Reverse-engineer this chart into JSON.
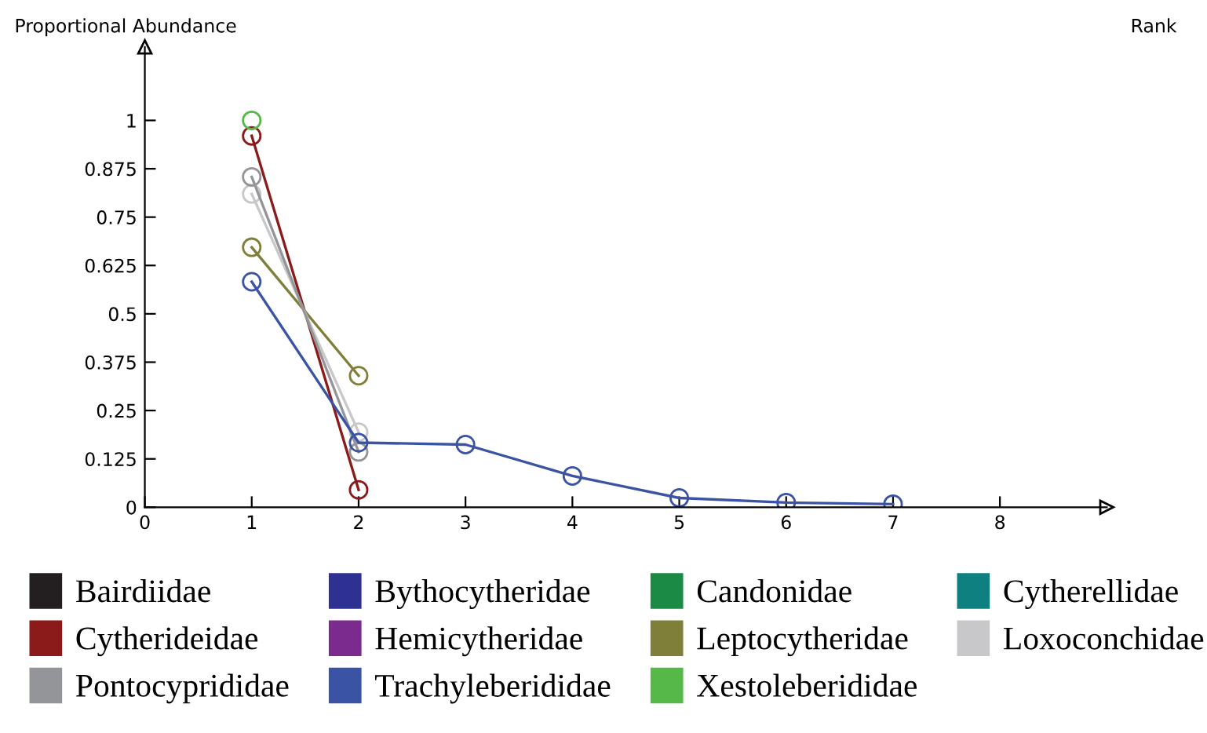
{
  "chart_data": {
    "type": "line",
    "xlabel": "Rank",
    "ylabel": "Proportional Abundance",
    "xlim": [
      0,
      9
    ],
    "xticks": [
      0,
      1,
      2,
      3,
      4,
      5,
      6,
      7,
      8
    ],
    "ylim": [
      0,
      1.19
    ],
    "yticks": [
      0,
      0.125,
      0.25,
      0.375,
      0.5,
      0.625,
      0.75,
      0.875,
      1
    ],
    "grid": false,
    "legend": "bottom",
    "marker": "circle",
    "line_style": "solid",
    "series": [
      {
        "name": "Bairdiidae",
        "color": "#231f20"
      },
      {
        "name": "Bythocytheridae",
        "color": "#2e3192"
      },
      {
        "name": "Candonidae",
        "color": "#1b8a45"
      },
      {
        "name": "Cytherellidae",
        "color": "#0f8080"
      },
      {
        "name": "Cytherideidae",
        "color": "#8b1a1a",
        "x": [
          1,
          2
        ],
        "values": [
          0.96,
          0.045
        ]
      },
      {
        "name": "Hemicytheridae",
        "color": "#7b2a8e"
      },
      {
        "name": "Leptocytheridae",
        "color": "#7f7f3a",
        "x": [
          1,
          2
        ],
        "values": [
          0.672,
          0.34
        ]
      },
      {
        "name": "Loxoconchidae",
        "color": "#c8c8ca",
        "x": [
          1,
          2
        ],
        "values": [
          0.81,
          0.194
        ]
      },
      {
        "name": "Pontocyprididae",
        "color": "#939598",
        "x": [
          1,
          2
        ],
        "values": [
          0.854,
          0.143
        ]
      },
      {
        "name": "Trachyleberididae",
        "color": "#3b53a4",
        "x": [
          1,
          2,
          3,
          4,
          5,
          6,
          7
        ],
        "values": [
          0.583,
          0.167,
          0.162,
          0.081,
          0.024,
          0.012,
          0.008
        ]
      },
      {
        "name": "Xestoleberididae",
        "color": "#55b848",
        "x": [
          1
        ],
        "values": [
          1
        ]
      }
    ]
  }
}
